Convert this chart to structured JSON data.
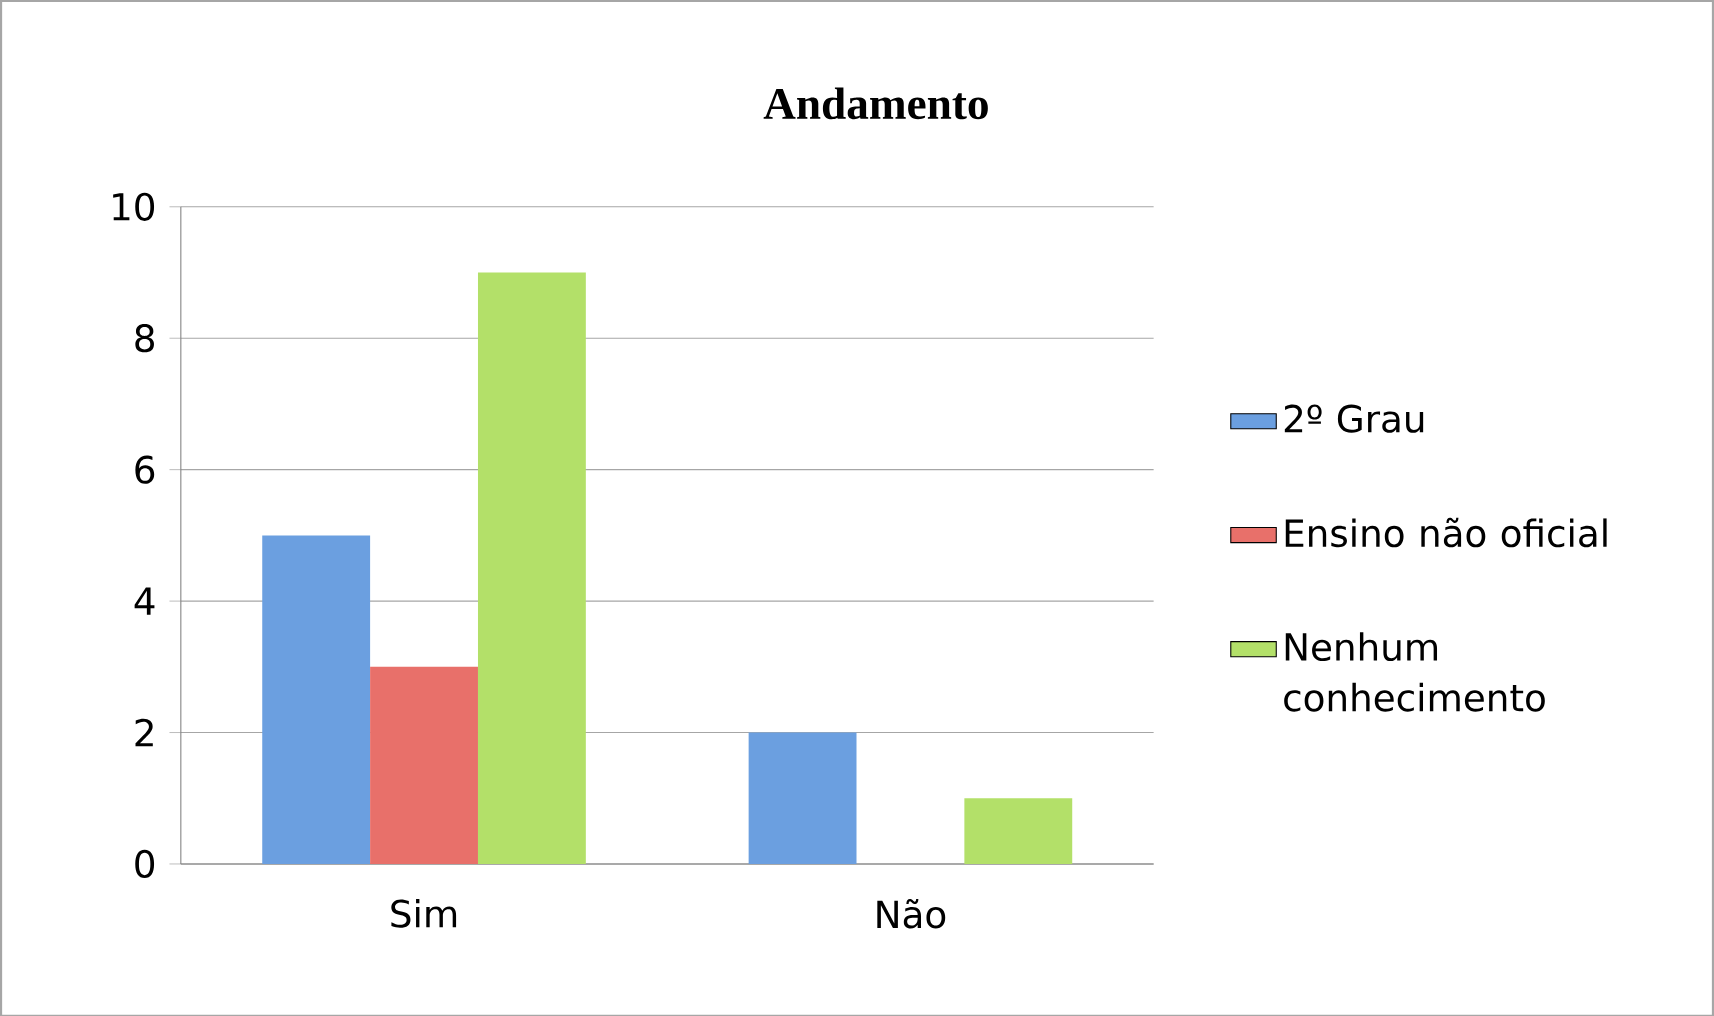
{
  "chart_data": {
    "type": "bar",
    "title": "Andamento",
    "categories": [
      "Sim",
      "Não"
    ],
    "series": [
      {
        "name": "2º Grau",
        "color": "#6b9fe0",
        "values": [
          5,
          2
        ]
      },
      {
        "name": "Ensino não oficial",
        "color": "#e8706a",
        "values": [
          3,
          0
        ]
      },
      {
        "name": "Nenhum conhecimento",
        "color": "#b3e069",
        "values": [
          9,
          1
        ]
      }
    ],
    "ylim": [
      0,
      10
    ],
    "yticks": [
      0,
      2,
      4,
      6,
      8,
      10
    ],
    "grid": "y",
    "legend": "right"
  }
}
